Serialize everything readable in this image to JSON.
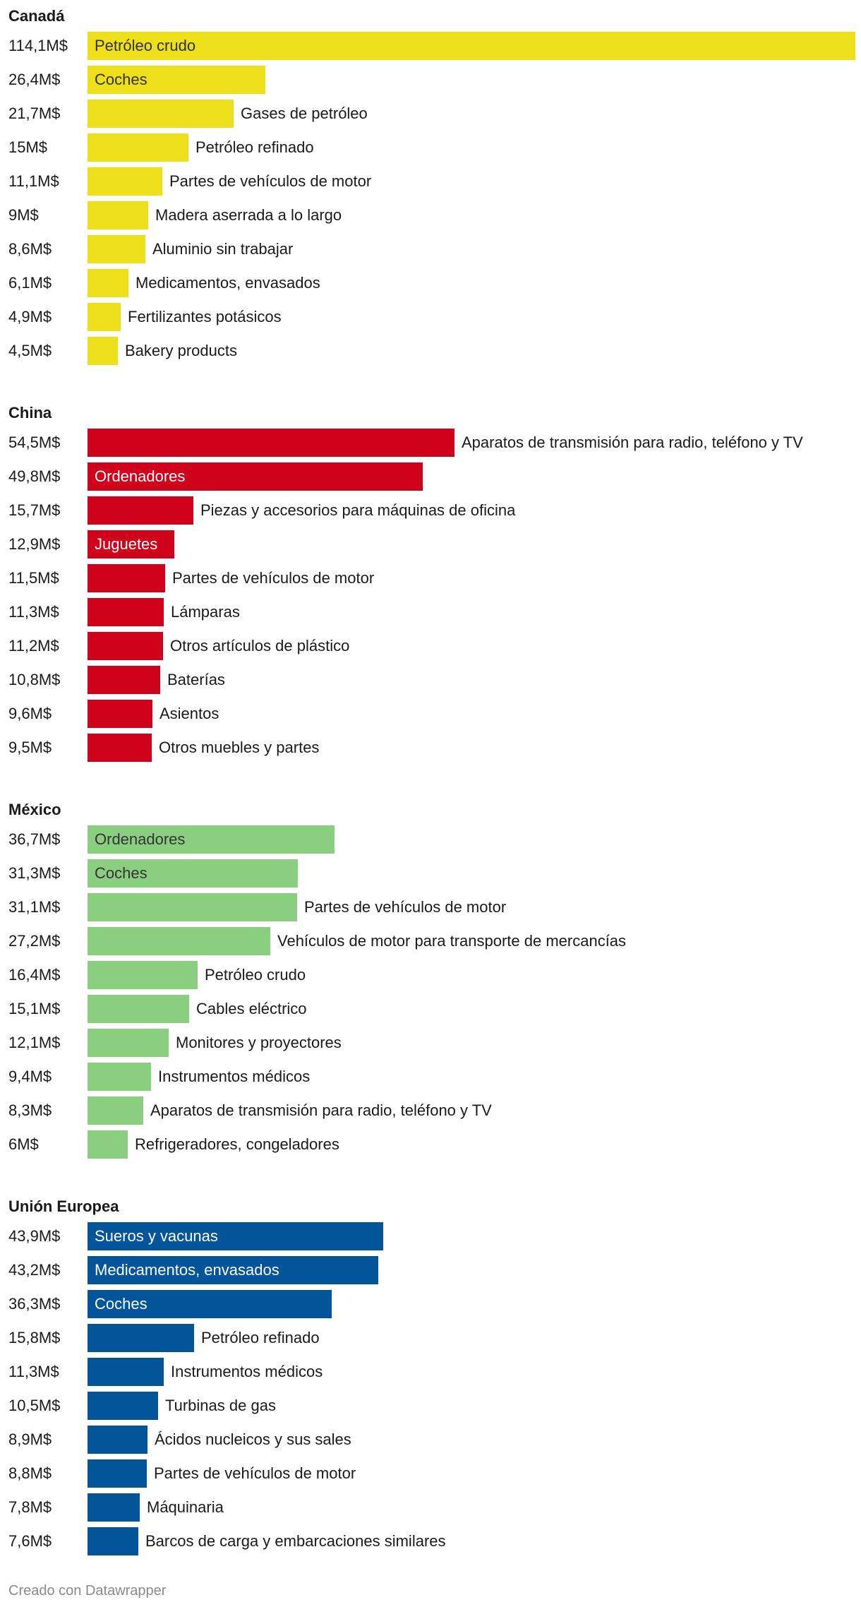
{
  "chart_data": {
    "type": "bar",
    "orientation": "horizontal",
    "groups": [
      {
        "title": "Canadá",
        "color": "#eedf1b",
        "inside_label_color": "#333333",
        "items": [
          {
            "label": "Petróleo crudo",
            "value": 114.1,
            "value_label": "114,1M$",
            "label_inside": true
          },
          {
            "label": "Coches",
            "value": 26.4,
            "value_label": "26,4M$",
            "label_inside": true
          },
          {
            "label": "Gases de petróleo",
            "value": 21.7,
            "value_label": "21,7M$",
            "label_inside": false
          },
          {
            "label": "Petróleo refinado",
            "value": 15,
            "value_label": "15M$",
            "label_inside": false
          },
          {
            "label": "Partes de vehículos de motor",
            "value": 11.1,
            "value_label": "11,1M$",
            "label_inside": false
          },
          {
            "label": "Madera aserrada a lo largo",
            "value": 9,
            "value_label": "9M$",
            "label_inside": false
          },
          {
            "label": "Aluminio sin trabajar",
            "value": 8.6,
            "value_label": "8,6M$",
            "label_inside": false
          },
          {
            "label": "Medicamentos, envasados",
            "value": 6.1,
            "value_label": "6,1M$",
            "label_inside": false
          },
          {
            "label": "Fertilizantes potásicos",
            "value": 4.9,
            "value_label": "4,9M$",
            "label_inside": false
          },
          {
            "label": "Bakery products",
            "value": 4.5,
            "value_label": "4,5M$",
            "label_inside": false
          }
        ]
      },
      {
        "title": "China",
        "color": "#d0021b",
        "inside_label_color": "#ffffff",
        "items": [
          {
            "label": "Aparatos de transmisión para radio, teléfono y TV",
            "value": 54.5,
            "value_label": "54,5M$",
            "label_inside": false
          },
          {
            "label": "Ordenadores",
            "value": 49.8,
            "value_label": "49,8M$",
            "label_inside": true
          },
          {
            "label": "Piezas y accesorios para máquinas de oficina",
            "value": 15.7,
            "value_label": "15,7M$",
            "label_inside": false
          },
          {
            "label": "Juguetes",
            "value": 12.9,
            "value_label": "12,9M$",
            "label_inside": true
          },
          {
            "label": "Partes de vehículos de motor",
            "value": 11.5,
            "value_label": "11,5M$",
            "label_inside": false
          },
          {
            "label": "Lámparas",
            "value": 11.3,
            "value_label": "11,3M$",
            "label_inside": false
          },
          {
            "label": "Otros artículos de plástico",
            "value": 11.2,
            "value_label": "11,2M$",
            "label_inside": false
          },
          {
            "label": "Baterías",
            "value": 10.8,
            "value_label": "10,8M$",
            "label_inside": false
          },
          {
            "label": "Asientos",
            "value": 9.6,
            "value_label": "9,6M$",
            "label_inside": false
          },
          {
            "label": "Otros muebles y partes",
            "value": 9.5,
            "value_label": "9,5M$",
            "label_inside": false
          }
        ]
      },
      {
        "title": "México",
        "color": "#8acf80",
        "inside_label_color": "#333333",
        "items": [
          {
            "label": "Ordenadores",
            "value": 36.7,
            "value_label": "36,7M$",
            "label_inside": true
          },
          {
            "label": "Coches",
            "value": 31.3,
            "value_label": "31,3M$",
            "label_inside": true
          },
          {
            "label": "Partes de vehículos de motor",
            "value": 31.1,
            "value_label": "31,1M$",
            "label_inside": false
          },
          {
            "label": "Vehículos de motor para transporte de mercancías",
            "value": 27.2,
            "value_label": "27,2M$",
            "label_inside": false
          },
          {
            "label": "Petróleo crudo",
            "value": 16.4,
            "value_label": "16,4M$",
            "label_inside": false
          },
          {
            "label": "Cables eléctrico",
            "value": 15.1,
            "value_label": "15,1M$",
            "label_inside": false
          },
          {
            "label": "Monitores y proyectores",
            "value": 12.1,
            "value_label": "12,1M$",
            "label_inside": false
          },
          {
            "label": "Instrumentos médicos",
            "value": 9.4,
            "value_label": "9,4M$",
            "label_inside": false
          },
          {
            "label": "Aparatos de transmisión para radio, teléfono y TV",
            "value": 8.3,
            "value_label": "8,3M$",
            "label_inside": false
          },
          {
            "label": "Refrigeradores, congeladores",
            "value": 6,
            "value_label": "6M$",
            "label_inside": false
          }
        ]
      },
      {
        "title": "Unión Europea",
        "color": "#03559a",
        "inside_label_color": "#ffffff",
        "items": [
          {
            "label": "Sueros y vacunas",
            "value": 43.9,
            "value_label": "43,9M$",
            "label_inside": true
          },
          {
            "label": "Medicamentos, envasados",
            "value": 43.2,
            "value_label": "43,2M$",
            "label_inside": true
          },
          {
            "label": "Coches",
            "value": 36.3,
            "value_label": "36,3M$",
            "label_inside": true
          },
          {
            "label": "Petróleo refinado",
            "value": 15.8,
            "value_label": "15,8M$",
            "label_inside": false
          },
          {
            "label": "Instrumentos médicos",
            "value": 11.3,
            "value_label": "11,3M$",
            "label_inside": false
          },
          {
            "label": "Turbinas de gas",
            "value": 10.5,
            "value_label": "10,5M$",
            "label_inside": false
          },
          {
            "label": "Ácidos nucleicos y sus sales",
            "value": 8.9,
            "value_label": "8,9M$",
            "label_inside": false
          },
          {
            "label": "Partes de vehículos de motor",
            "value": 8.8,
            "value_label": "8,8M$",
            "label_inside": false
          },
          {
            "label": "Máquinaria",
            "value": 7.8,
            "value_label": "7,8M$",
            "label_inside": false
          },
          {
            "label": "Barcos de carga y embarcaciones similares",
            "value": 7.6,
            "value_label": "7,6M$",
            "label_inside": false
          }
        ]
      }
    ]
  },
  "footer": {
    "credit": "Creado con Datawrapper"
  }
}
